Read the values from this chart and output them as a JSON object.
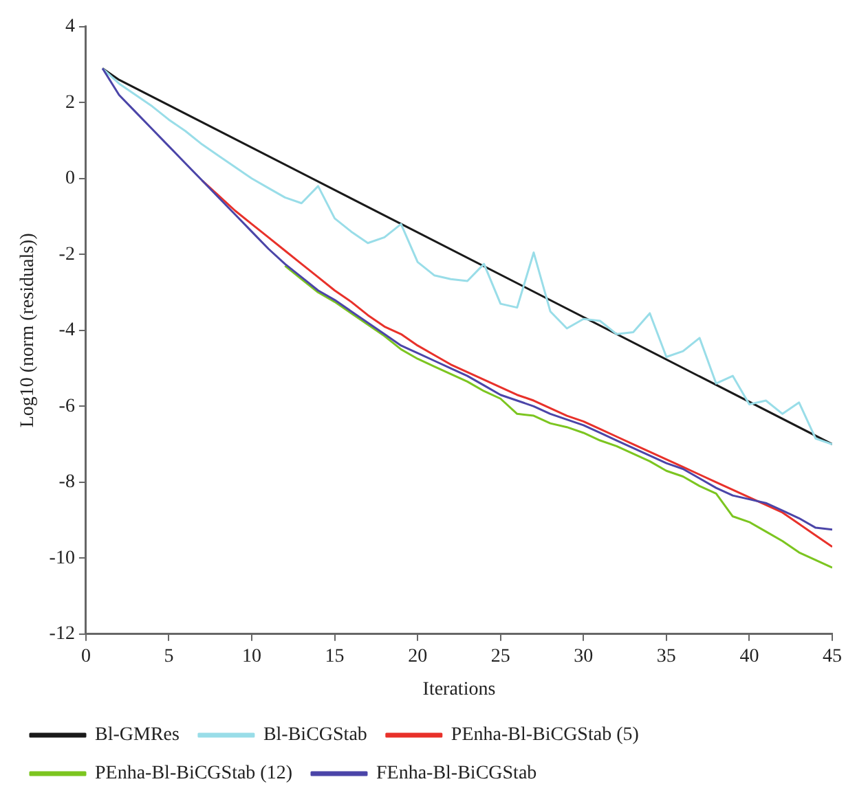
{
  "chart_data": {
    "type": "line",
    "xlabel": "Iterations",
    "ylabel": "Log10 (norm (residuals))",
    "xlim": [
      0,
      45
    ],
    "xticks": [
      0,
      5,
      10,
      15,
      20,
      25,
      30,
      35,
      40,
      45
    ],
    "ylim": [
      -12,
      4
    ],
    "yticks": [
      -12,
      -10,
      -8,
      -6,
      -4,
      -2,
      0,
      2,
      4
    ],
    "grid": false,
    "legend": "bottom",
    "marker": "none",
    "line_style": "solid",
    "series": [
      {
        "name": "Bl-GMRes",
        "color": "#1a1a1a",
        "x": [
          1,
          2,
          45
        ],
        "values": [
          2.9,
          2.6,
          -7.0
        ]
      },
      {
        "name": "Bl-BiCGStab",
        "color": "#99dde8",
        "x": [
          1,
          2,
          3,
          4,
          5,
          6,
          7,
          8,
          9,
          10,
          11,
          12,
          13,
          14,
          15,
          16,
          17,
          18,
          19,
          20,
          21,
          22,
          23,
          24,
          25,
          26,
          27,
          28,
          29,
          30,
          31,
          32,
          33,
          34,
          35,
          36,
          37,
          38,
          39,
          40,
          41,
          42,
          43,
          44,
          45
        ],
        "values": [
          2.9,
          2.5,
          2.2,
          1.9,
          1.55,
          1.25,
          0.9,
          0.6,
          0.3,
          0.0,
          -0.25,
          -0.5,
          -0.65,
          -0.2,
          -1.05,
          -1.4,
          -1.7,
          -1.55,
          -1.2,
          -2.2,
          -2.55,
          -2.65,
          -2.7,
          -2.25,
          -3.3,
          -3.4,
          -1.95,
          -3.5,
          -3.95,
          -3.7,
          -3.75,
          -4.1,
          -4.05,
          -3.55,
          -4.7,
          -4.55,
          -4.2,
          -5.4,
          -5.2,
          -5.95,
          -5.85,
          -6.2,
          -5.9,
          -6.85,
          -7.0
        ]
      },
      {
        "name": "PEnha-Bl-BiCGStab (5)",
        "color": "#e8312a",
        "x": [
          7,
          8,
          9,
          10,
          11,
          12,
          13,
          14,
          15,
          16,
          17,
          18,
          19,
          20,
          21,
          22,
          23,
          24,
          25,
          26,
          27,
          28,
          29,
          30,
          31,
          32,
          33,
          34,
          35,
          36,
          37,
          38,
          39,
          40,
          41,
          42,
          43,
          44,
          45
        ],
        "values": [
          -0.05,
          -0.45,
          -0.85,
          -1.2,
          -1.55,
          -1.9,
          -2.25,
          -2.6,
          -2.95,
          -3.25,
          -3.6,
          -3.9,
          -4.1,
          -4.4,
          -4.65,
          -4.9,
          -5.1,
          -5.3,
          -5.5,
          -5.7,
          -5.85,
          -6.05,
          -6.25,
          -6.4,
          -6.6,
          -6.8,
          -7.0,
          -7.2,
          -7.4,
          -7.6,
          -7.8,
          -8.0,
          -8.2,
          -8.4,
          -8.6,
          -8.8,
          -9.1,
          -9.4,
          -9.7
        ]
      },
      {
        "name": "PEnha-Bl-BiCGStab (12)",
        "color": "#7cc520",
        "x": [
          12,
          13,
          14,
          15,
          16,
          17,
          18,
          19,
          20,
          21,
          22,
          23,
          24,
          25,
          26,
          27,
          28,
          29,
          30,
          31,
          32,
          33,
          34,
          35,
          36,
          37,
          38,
          39,
          40,
          41,
          42,
          43,
          44,
          45
        ],
        "values": [
          -2.3,
          -2.65,
          -3.0,
          -3.25,
          -3.55,
          -3.85,
          -4.15,
          -4.5,
          -4.75,
          -4.95,
          -5.15,
          -5.35,
          -5.6,
          -5.8,
          -6.2,
          -6.25,
          -6.45,
          -6.55,
          -6.7,
          -6.9,
          -7.05,
          -7.25,
          -7.45,
          -7.7,
          -7.85,
          -8.1,
          -8.3,
          -8.9,
          -9.05,
          -9.3,
          -9.55,
          -9.85,
          -10.05,
          -10.25
        ]
      },
      {
        "name": "FEnha-Bl-BiCGStab",
        "color": "#4b45a8",
        "x": [
          1,
          2,
          3,
          4,
          5,
          6,
          7,
          8,
          9,
          10,
          11,
          12,
          13,
          14,
          15,
          16,
          17,
          18,
          19,
          20,
          21,
          22,
          23,
          24,
          25,
          26,
          27,
          28,
          29,
          30,
          31,
          32,
          33,
          34,
          35,
          36,
          37,
          38,
          39,
          40,
          41,
          42,
          43,
          44,
          45
        ],
        "values": [
          2.9,
          2.2,
          1.75,
          1.3,
          0.85,
          0.4,
          -0.05,
          -0.5,
          -0.95,
          -1.4,
          -1.85,
          -2.25,
          -2.6,
          -2.95,
          -3.2,
          -3.5,
          -3.8,
          -4.1,
          -4.4,
          -4.6,
          -4.8,
          -5.0,
          -5.2,
          -5.45,
          -5.7,
          -5.85,
          -6.0,
          -6.2,
          -6.35,
          -6.5,
          -6.7,
          -6.9,
          -7.1,
          -7.3,
          -7.5,
          -7.65,
          -7.9,
          -8.15,
          -8.35,
          -8.45,
          -8.55,
          -8.75,
          -8.95,
          -9.2,
          -9.25
        ]
      }
    ]
  }
}
